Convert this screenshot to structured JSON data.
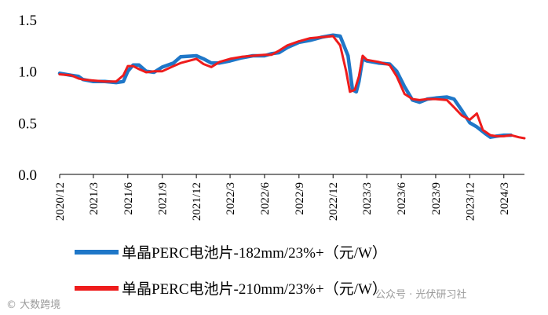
{
  "chart_data": {
    "type": "line",
    "y_ticks": [
      "1.5",
      "1.0",
      "0.5",
      "0.0"
    ],
    "y_tick_values": [
      1.5,
      1.0,
      0.5,
      0.0
    ],
    "ylim": [
      0,
      1.5
    ],
    "xlim": [
      "2020-12-01",
      "2024-04-25"
    ],
    "x_ticks": [
      {
        "label": "2020/12",
        "date": "2020-12-01"
      },
      {
        "label": "2021/3",
        "date": "2021-03-01"
      },
      {
        "label": "2021/6",
        "date": "2021-06-01"
      },
      {
        "label": "2021/9",
        "date": "2021-09-01"
      },
      {
        "label": "2021/12",
        "date": "2021-12-01"
      },
      {
        "label": "2022/3",
        "date": "2022-03-01"
      },
      {
        "label": "2022/6",
        "date": "2022-06-01"
      },
      {
        "label": "2022/9",
        "date": "2022-09-01"
      },
      {
        "label": "2022/12",
        "date": "2022-12-01"
      },
      {
        "label": "2023/3",
        "date": "2023-03-01"
      },
      {
        "label": "2023/6",
        "date": "2023-06-01"
      },
      {
        "label": "2023/9",
        "date": "2023-09-01"
      },
      {
        "label": "2023/12",
        "date": "2023-12-01"
      },
      {
        "label": "2024/3",
        "date": "2024-03-01"
      }
    ],
    "grid": false,
    "legend_position": "bottom",
    "series": [
      {
        "name": "单晶PERC电池片-182mm/23%+（元/W）",
        "color": "#1f77c8",
        "points": [
          [
            "2020-12-01",
            0.98
          ],
          [
            "2021-01-01",
            0.96
          ],
          [
            "2021-01-20",
            0.95
          ],
          [
            "2021-02-01",
            0.92
          ],
          [
            "2021-03-01",
            0.9
          ],
          [
            "2021-04-01",
            0.9
          ],
          [
            "2021-05-01",
            0.89
          ],
          [
            "2021-05-20",
            0.9
          ],
          [
            "2021-06-01",
            1.0
          ],
          [
            "2021-06-15",
            1.06
          ],
          [
            "2021-07-01",
            1.06
          ],
          [
            "2021-07-20",
            1.0
          ],
          [
            "2021-08-10",
            0.99
          ],
          [
            "2021-09-01",
            1.04
          ],
          [
            "2021-10-01",
            1.08
          ],
          [
            "2021-10-20",
            1.14
          ],
          [
            "2021-12-01",
            1.15
          ],
          [
            "2021-12-20",
            1.12
          ],
          [
            "2022-01-10",
            1.08
          ],
          [
            "2022-02-01",
            1.08
          ],
          [
            "2022-03-01",
            1.1
          ],
          [
            "2022-04-01",
            1.13
          ],
          [
            "2022-05-01",
            1.15
          ],
          [
            "2022-06-01",
            1.15
          ],
          [
            "2022-06-20",
            1.17
          ],
          [
            "2022-07-10",
            1.18
          ],
          [
            "2022-08-01",
            1.23
          ],
          [
            "2022-09-01",
            1.28
          ],
          [
            "2022-10-01",
            1.3
          ],
          [
            "2022-11-01",
            1.33
          ],
          [
            "2022-12-01",
            1.35
          ],
          [
            "2022-12-20",
            1.34
          ],
          [
            "2023-01-10",
            1.15
          ],
          [
            "2023-01-22",
            0.82
          ],
          [
            "2023-02-01",
            0.8
          ],
          [
            "2023-02-08",
            0.9
          ],
          [
            "2023-02-18",
            1.12
          ],
          [
            "2023-03-01",
            1.1
          ],
          [
            "2023-04-01",
            1.08
          ],
          [
            "2023-05-01",
            1.07
          ],
          [
            "2023-05-20",
            1.0
          ],
          [
            "2023-06-10",
            0.85
          ],
          [
            "2023-07-01",
            0.72
          ],
          [
            "2023-07-20",
            0.7
          ],
          [
            "2023-08-10",
            0.73
          ],
          [
            "2023-09-01",
            0.74
          ],
          [
            "2023-10-01",
            0.75
          ],
          [
            "2023-10-20",
            0.73
          ],
          [
            "2023-11-10",
            0.62
          ],
          [
            "2023-12-01",
            0.5
          ],
          [
            "2023-12-20",
            0.46
          ],
          [
            "2024-01-10",
            0.4
          ],
          [
            "2024-01-25",
            0.36
          ],
          [
            "2024-02-10",
            0.37
          ],
          [
            "2024-03-01",
            0.38
          ],
          [
            "2024-03-20",
            0.38
          ]
        ]
      },
      {
        "name": "单晶PERC电池片-210mm/23%+（元/W）",
        "color": "#ee1c1c",
        "points": [
          [
            "2020-12-01",
            0.97
          ],
          [
            "2021-01-01",
            0.96
          ],
          [
            "2021-01-20",
            0.93
          ],
          [
            "2021-02-01",
            0.92
          ],
          [
            "2021-03-01",
            0.91
          ],
          [
            "2021-04-01",
            0.9
          ],
          [
            "2021-05-01",
            0.9
          ],
          [
            "2021-05-20",
            0.96
          ],
          [
            "2021-06-01",
            1.05
          ],
          [
            "2021-06-15",
            1.05
          ],
          [
            "2021-07-01",
            1.02
          ],
          [
            "2021-07-20",
            0.99
          ],
          [
            "2021-08-10",
            1.0
          ],
          [
            "2021-09-01",
            1.0
          ],
          [
            "2021-10-01",
            1.05
          ],
          [
            "2021-10-20",
            1.08
          ],
          [
            "2021-12-01",
            1.12
          ],
          [
            "2021-12-20",
            1.07
          ],
          [
            "2022-01-10",
            1.04
          ],
          [
            "2022-02-01",
            1.09
          ],
          [
            "2022-03-01",
            1.12
          ],
          [
            "2022-04-01",
            1.14
          ],
          [
            "2022-05-01",
            1.15
          ],
          [
            "2022-06-01",
            1.16
          ],
          [
            "2022-06-20",
            1.16
          ],
          [
            "2022-07-10",
            1.2
          ],
          [
            "2022-08-01",
            1.25
          ],
          [
            "2022-09-01",
            1.29
          ],
          [
            "2022-10-01",
            1.32
          ],
          [
            "2022-11-01",
            1.33
          ],
          [
            "2022-12-01",
            1.34
          ],
          [
            "2022-12-20",
            1.25
          ],
          [
            "2023-01-05",
            1.0
          ],
          [
            "2023-01-15",
            0.8
          ],
          [
            "2023-01-28",
            0.82
          ],
          [
            "2023-02-08",
            0.95
          ],
          [
            "2023-02-18",
            1.15
          ],
          [
            "2023-03-01",
            1.11
          ],
          [
            "2023-04-01",
            1.09
          ],
          [
            "2023-05-01",
            1.06
          ],
          [
            "2023-05-20",
            0.95
          ],
          [
            "2023-06-10",
            0.78
          ],
          [
            "2023-07-01",
            0.73
          ],
          [
            "2023-07-20",
            0.72
          ],
          [
            "2023-08-10",
            0.73
          ],
          [
            "2023-09-01",
            0.73
          ],
          [
            "2023-10-01",
            0.72
          ],
          [
            "2023-10-20",
            0.65
          ],
          [
            "2023-11-10",
            0.57
          ],
          [
            "2023-12-01",
            0.53
          ],
          [
            "2023-12-20",
            0.59
          ],
          [
            "2024-01-05",
            0.43
          ],
          [
            "2024-01-25",
            0.38
          ],
          [
            "2024-02-10",
            0.37
          ],
          [
            "2024-03-01",
            0.37
          ],
          [
            "2024-03-20",
            0.38
          ],
          [
            "2024-04-10",
            0.36
          ],
          [
            "2024-04-25",
            0.35
          ]
        ]
      }
    ]
  },
  "watermarks": {
    "left": "© 大数跨境",
    "right": "公众号 · 光伏研习社"
  }
}
